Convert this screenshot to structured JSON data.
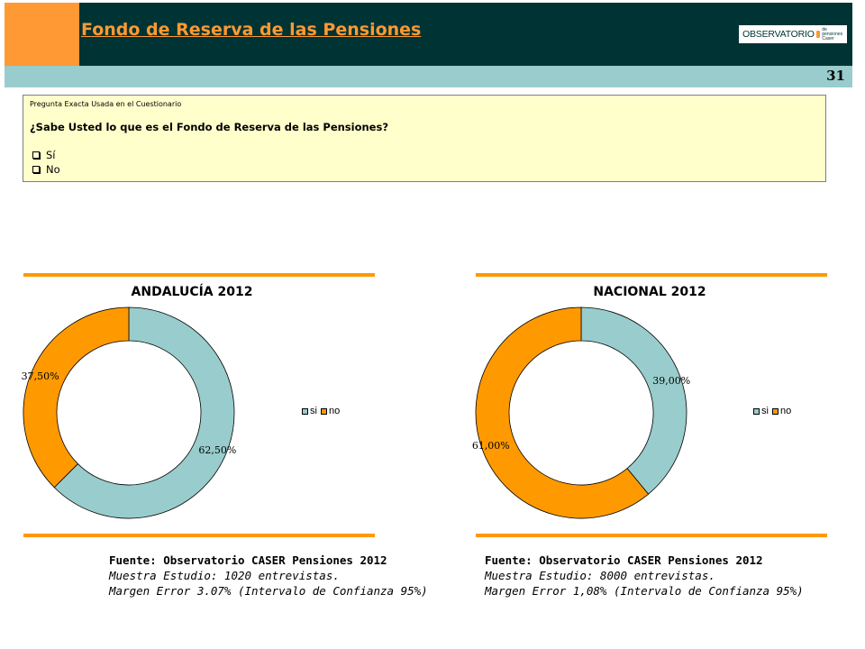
{
  "header": {
    "title": "Fondo de Reserva de las Pensiones",
    "page_number": "31",
    "logo_text": "OBSERVATORIO",
    "logo_subtext_1": "de pensiones",
    "logo_subtext_2": "Caser"
  },
  "question": {
    "caption": "Pregunta Exacta Usada en el Cuestionario",
    "text": "¿Sabe Usted lo que es el Fondo de Reserva de las Pensiones?",
    "options": [
      "Sí",
      "No"
    ]
  },
  "colors": {
    "si": "#99cccc",
    "no": "#ff9900",
    "accent": "#ff9933",
    "header_dark": "#003333",
    "question_bg": "#ffffcc"
  },
  "chart_data": [
    {
      "type": "pie",
      "title": "ANDALUCÍA 2012",
      "categories": [
        "si",
        "no"
      ],
      "values": [
        62.5,
        37.5
      ],
      "data_labels": [
        "62,50%",
        "37,50%"
      ],
      "legend_position": "right"
    },
    {
      "type": "pie",
      "title": "NACIONAL 2012",
      "categories": [
        "si",
        "no"
      ],
      "values": [
        39.0,
        61.0
      ],
      "data_labels": [
        "39,00%",
        "61,00%"
      ],
      "legend_position": "right"
    }
  ],
  "sources": [
    {
      "line1": "Fuente: Observatorio CASER Pensiones 2012",
      "line2": "Muestra Estudio: 1020 entrevistas.",
      "line3": "Margen Error 3.07% (Intervalo de Confianza 95%)"
    },
    {
      "line1": "Fuente: Observatorio CASER Pensiones 2012",
      "line2": "Muestra Estudio: 8000 entrevistas.",
      "line3": "Margen Error 1,08% (Intervalo de Confianza 95%)"
    }
  ]
}
